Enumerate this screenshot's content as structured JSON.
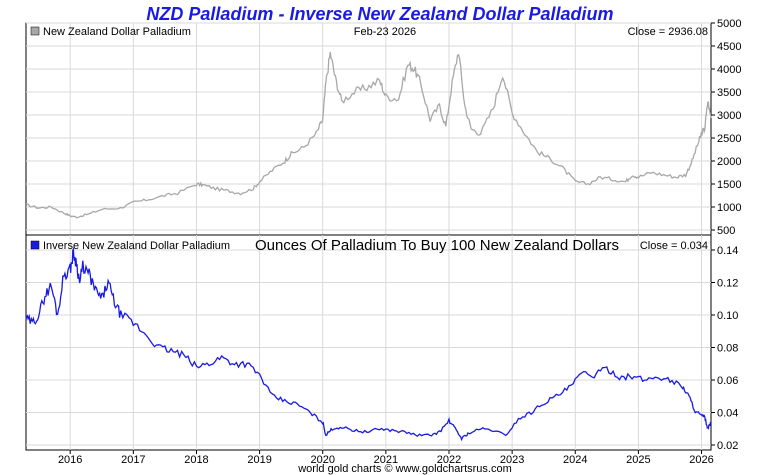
{
  "title": "NZD Palladium - Inverse New Zealand Dollar Palladium",
  "date_label": "Feb-23  2026",
  "footer": "world gold charts © www.goldchartsrus.com",
  "colors": {
    "top_series": "#a8a8a8",
    "bottom_series": "#1a1ae6",
    "grid": "#d9d9d9",
    "title": "#1a1ae6"
  },
  "chart_data": [
    {
      "type": "line",
      "name": "top",
      "legend": "New Zealand Dollar Palladium",
      "close_label": "Close = 2936.08",
      "ylim": [
        500,
        5000
      ],
      "y_ticks": [
        "500",
        "1000",
        "1500",
        "2000",
        "2500",
        "3000",
        "3500",
        "4000",
        "4500",
        "5000"
      ],
      "xlim": [
        2015.3,
        2026.15
      ],
      "x": [
        2015.3,
        2015.5,
        2015.7,
        2015.9,
        2016.0,
        2016.1,
        2016.3,
        2016.5,
        2016.8,
        2017.0,
        2017.2,
        2017.5,
        2017.7,
        2018.0,
        2018.1,
        2018.3,
        2018.5,
        2018.7,
        2018.9,
        2019.0,
        2019.2,
        2019.4,
        2019.5,
        2019.7,
        2019.9,
        2020.0,
        2020.05,
        2020.12,
        2020.2,
        2020.3,
        2020.5,
        2020.7,
        2020.9,
        2021.0,
        2021.2,
        2021.35,
        2021.45,
        2021.55,
        2021.7,
        2021.85,
        2021.95,
        2022.05,
        2022.15,
        2022.25,
        2022.35,
        2022.5,
        2022.7,
        2022.85,
        2023.0,
        2023.2,
        2023.4,
        2023.6,
        2023.8,
        2024.0,
        2024.2,
        2024.4,
        2024.6,
        2024.8,
        2024.9,
        2025.0,
        2025.2,
        2025.4,
        2025.6,
        2025.75,
        2025.85,
        2025.95,
        2026.0,
        2026.05,
        2026.1,
        2026.15
      ],
      "values": [
        1050,
        980,
        1000,
        870,
        810,
        780,
        850,
        950,
        980,
        1100,
        1150,
        1250,
        1300,
        1500,
        1480,
        1400,
        1350,
        1300,
        1400,
        1550,
        1800,
        2000,
        2150,
        2300,
        2600,
        2900,
        3700,
        4350,
        3800,
        3300,
        3500,
        3600,
        3750,
        3400,
        3350,
        4100,
        4000,
        3700,
        2900,
        3200,
        2750,
        3700,
        4400,
        3200,
        2700,
        2600,
        3150,
        3900,
        3050,
        2600,
        2200,
        2050,
        1850,
        1550,
        1500,
        1650,
        1600,
        1550,
        1700,
        1650,
        1750,
        1700,
        1650,
        1700,
        2000,
        2400,
        2600,
        2700,
        3300,
        2936
      ]
    },
    {
      "type": "line",
      "name": "bottom",
      "legend": "Inverse New Zealand Dollar Palladium",
      "subtitle": "Ounces Of Palladium To Buy 100 New Zealand Dollars",
      "close_label": "Close = 0.034",
      "ylim": [
        0.02,
        0.14
      ],
      "y_ticks": [
        "0.02",
        "0.04",
        "0.06",
        "0.08",
        "0.10",
        "0.12",
        "0.14"
      ],
      "xlim": [
        2015.3,
        2026.15
      ],
      "x_ticks": [
        "2016",
        "2017",
        "2018",
        "2019",
        "2020",
        "2021",
        "2022",
        "2023",
        "2024",
        "2025",
        "2026"
      ],
      "x": [
        2015.3,
        2015.4,
        2015.5,
        2015.6,
        2015.7,
        2015.8,
        2015.9,
        2016.0,
        2016.05,
        2016.1,
        2016.15,
        2016.2,
        2016.3,
        2016.4,
        2016.5,
        2016.6,
        2016.7,
        2016.8,
        2017.0,
        2017.2,
        2017.4,
        2017.6,
        2017.8,
        2018.0,
        2018.2,
        2018.4,
        2018.6,
        2018.8,
        2019.0,
        2019.2,
        2019.4,
        2019.6,
        2019.8,
        2020.0,
        2020.05,
        2020.15,
        2020.3,
        2020.5,
        2020.7,
        2020.9,
        2021.1,
        2021.3,
        2021.5,
        2021.7,
        2021.85,
        2022.0,
        2022.1,
        2022.2,
        2022.3,
        2022.5,
        2022.7,
        2022.9,
        2023.1,
        2023.3,
        2023.5,
        2023.7,
        2023.9,
        2024.1,
        2024.3,
        2024.5,
        2024.7,
        2024.9,
        2025.1,
        2025.3,
        2025.5,
        2025.7,
        2025.8,
        2025.9,
        2026.0,
        2026.05,
        2026.1,
        2026.15
      ],
      "values": [
        0.098,
        0.095,
        0.1,
        0.112,
        0.118,
        0.1,
        0.125,
        0.128,
        0.138,
        0.132,
        0.12,
        0.13,
        0.125,
        0.115,
        0.11,
        0.12,
        0.108,
        0.1,
        0.095,
        0.088,
        0.08,
        0.078,
        0.075,
        0.068,
        0.07,
        0.074,
        0.07,
        0.07,
        0.063,
        0.05,
        0.047,
        0.045,
        0.04,
        0.034,
        0.026,
        0.03,
        0.031,
        0.029,
        0.028,
        0.03,
        0.029,
        0.028,
        0.026,
        0.026,
        0.028,
        0.035,
        0.03,
        0.024,
        0.027,
        0.03,
        0.029,
        0.026,
        0.036,
        0.04,
        0.046,
        0.05,
        0.055,
        0.064,
        0.063,
        0.067,
        0.062,
        0.062,
        0.06,
        0.062,
        0.06,
        0.056,
        0.05,
        0.041,
        0.038,
        0.037,
        0.03,
        0.034
      ]
    }
  ]
}
